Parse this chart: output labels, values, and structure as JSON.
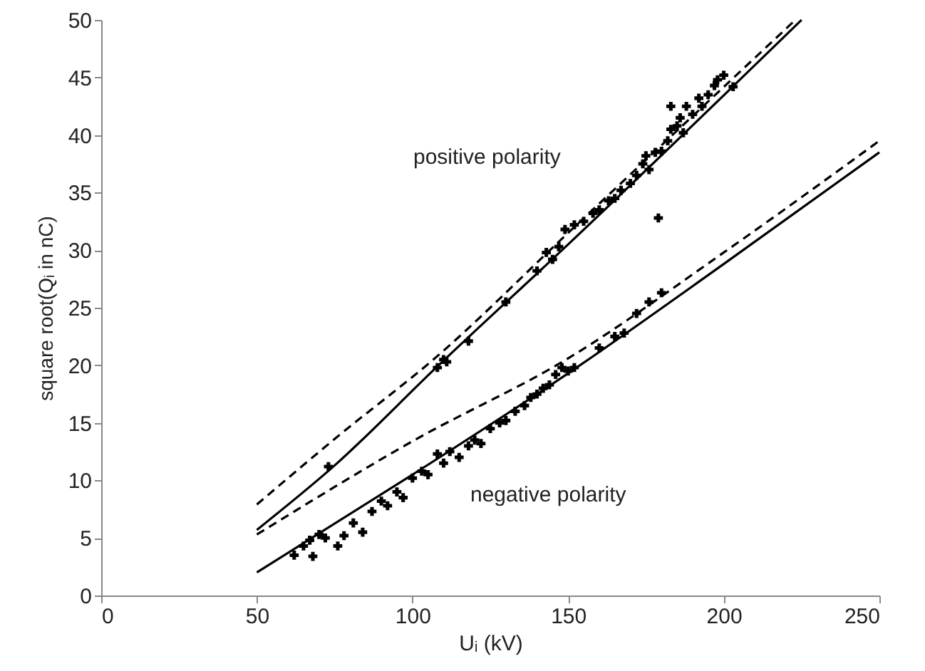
{
  "chart_data": {
    "type": "scatter",
    "xlabel": "Uᵢ (kV)",
    "ylabel": "square root(Qᵢ in nC)",
    "xlim": [
      0,
      250
    ],
    "ylim": [
      0,
      50
    ],
    "xticks": [
      0,
      50,
      100,
      150,
      200,
      250
    ],
    "yticks": [
      0,
      5,
      10,
      15,
      20,
      25,
      30,
      35,
      40,
      45,
      50
    ],
    "grid": false,
    "series": [
      {
        "marker": "cross",
        "color": "#000000",
        "x": [
          73,
          108,
          110,
          111,
          118,
          130,
          140,
          143,
          145,
          147,
          149,
          152,
          155,
          158,
          160,
          163,
          165,
          167,
          170,
          172,
          174,
          175,
          176,
          178,
          180,
          182,
          183,
          185,
          186,
          187,
          188,
          190,
          192,
          193,
          195,
          197,
          198,
          200,
          203,
          183,
          179
        ],
        "values": [
          11.2,
          19.8,
          20.5,
          20.3,
          22.1,
          25.5,
          28.2,
          29.8,
          29.2,
          30.3,
          31.8,
          32.2,
          32.5,
          33.2,
          33.5,
          34.3,
          34.5,
          35.2,
          35.8,
          36.5,
          37.5,
          38.2,
          37,
          38.5,
          38.6,
          39.5,
          40.5,
          40.8,
          41.5,
          40.2,
          42.5,
          41.8,
          43.2,
          42.5,
          43.5,
          44.3,
          44.8,
          45.2,
          44.2,
          42.5,
          32.8
        ]
      },
      {
        "marker": "cross",
        "color": "#000000",
        "x": [
          62,
          65,
          67,
          68,
          70,
          72,
          76,
          78,
          81,
          84,
          87,
          90,
          92,
          95,
          97,
          100,
          103,
          105,
          108,
          110,
          112,
          115,
          118,
          120,
          122,
          125,
          128,
          130,
          133,
          136,
          138,
          140,
          142,
          144,
          146,
          148,
          150,
          152,
          160,
          165,
          168,
          172,
          176,
          180
        ],
        "values": [
          3.5,
          4.3,
          4.8,
          3.4,
          5.3,
          5.0,
          4.3,
          5.2,
          6.3,
          5.5,
          7.3,
          8.2,
          7.8,
          9.0,
          8.5,
          10.2,
          10.8,
          10.5,
          12.3,
          11.5,
          12.5,
          12.0,
          13.0,
          13.5,
          13.2,
          14.5,
          15.0,
          15.2,
          16.0,
          16.5,
          17.2,
          17.5,
          18.0,
          18.3,
          19.2,
          19.8,
          19.5,
          19.8,
          21.5,
          22.5,
          22.8,
          24.5,
          25.5,
          26.3
        ]
      },
      {
        "type": "line",
        "line_style": "solid",
        "color": "#000000",
        "x": [
          50,
          75,
          108,
          150,
          225
        ],
        "values": [
          5.7,
          11.3,
          19.9,
          30.5,
          50
        ]
      },
      {
        "type": "line",
        "line_style": "dashed",
        "color": "#000000",
        "x": [
          50,
          75,
          108,
          150,
          223
        ],
        "values": [
          7.9,
          13.6,
          20.8,
          31.5,
          50
        ]
      },
      {
        "type": "line",
        "line_style": "solid",
        "color": "#000000",
        "x": [
          50,
          100,
          150,
          200,
          250
        ],
        "values": [
          2.0,
          10.5,
          19.3,
          28.8,
          38.5
        ]
      },
      {
        "type": "line",
        "line_style": "dashed",
        "color": "#000000",
        "x": [
          50,
          100,
          150,
          200,
          250
        ],
        "values": [
          5.3,
          13.4,
          20.6,
          29.8,
          39.5
        ]
      }
    ],
    "annotations": [
      "positive polarity",
      "negative polarity"
    ]
  }
}
